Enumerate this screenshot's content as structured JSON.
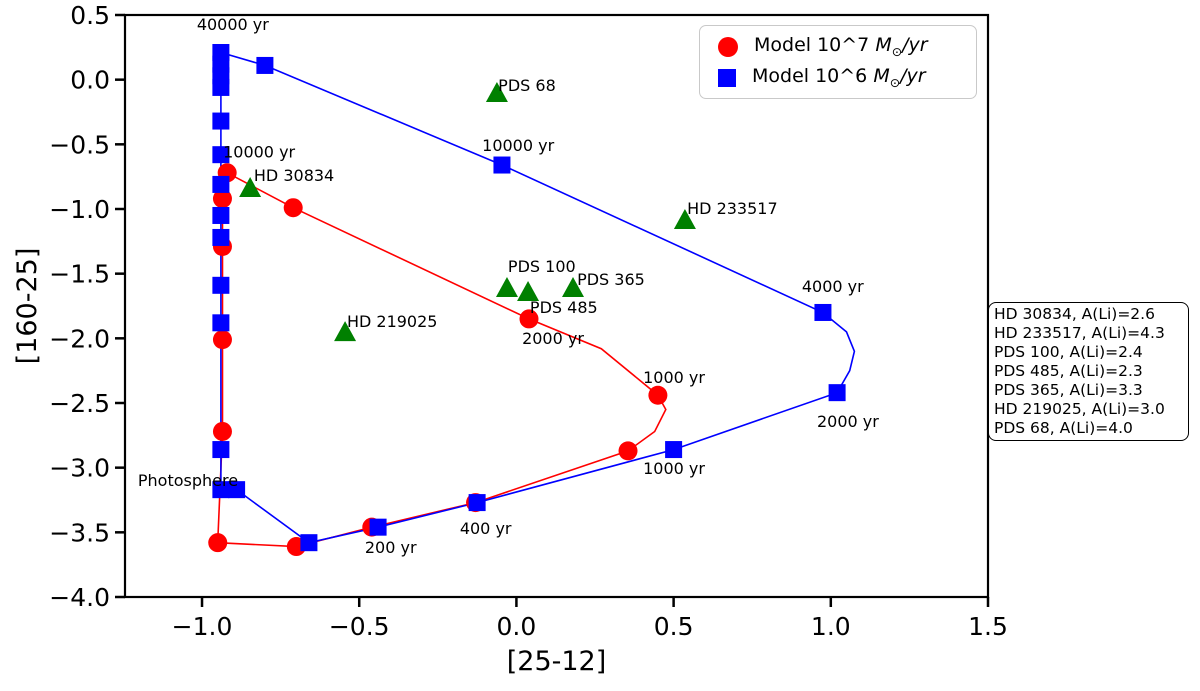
{
  "chart_data": {
    "type": "line+scatter",
    "xlabel": "[25-12]",
    "ylabel": "[160-25]",
    "xlim": [
      -1.245,
      1.5
    ],
    "ylim": [
      -4.0,
      0.5
    ],
    "xticks": [
      -1.0,
      -0.5,
      0.0,
      0.5,
      1.0,
      1.5
    ],
    "yticks": [
      0.5,
      0.0,
      -0.5,
      -1.0,
      -1.5,
      -2.0,
      -2.5,
      -3.0,
      -3.5,
      -4.0
    ],
    "grid": false,
    "series": [
      {
        "name": "Model 10^7 M⊙/yr",
        "color": "#ff0000",
        "marker": "circle",
        "markers": [
          [
            -0.92,
            -0.72
          ],
          [
            -0.935,
            -0.92
          ],
          [
            -0.935,
            -1.29
          ],
          [
            -0.935,
            -2.01
          ],
          [
            -0.935,
            -2.72
          ],
          [
            -0.95,
            -3.58
          ],
          [
            -0.7,
            -3.61
          ],
          [
            -0.46,
            -3.46
          ],
          [
            -0.13,
            -3.27
          ],
          [
            0.355,
            -2.87
          ],
          [
            0.45,
            -2.44
          ],
          [
            0.04,
            -1.85
          ],
          [
            -0.71,
            -0.99
          ]
        ],
        "path": [
          [
            -0.92,
            -0.72
          ],
          [
            -0.935,
            -0.85
          ],
          [
            -0.935,
            -0.92
          ],
          [
            -0.935,
            -1.29
          ],
          [
            -0.935,
            -2.01
          ],
          [
            -0.935,
            -2.72
          ],
          [
            -0.95,
            -3.58
          ],
          [
            -0.7,
            -3.61
          ],
          [
            -0.46,
            -3.46
          ],
          [
            -0.13,
            -3.27
          ],
          [
            0.355,
            -2.87
          ],
          [
            0.44,
            -2.72
          ],
          [
            0.475,
            -2.55
          ],
          [
            0.45,
            -2.44
          ],
          [
            0.27,
            -2.08
          ],
          [
            0.04,
            -1.85
          ],
          [
            -0.71,
            -0.99
          ],
          [
            -0.92,
            -0.72
          ]
        ]
      },
      {
        "name": "Model 10^6 M⊙/yr",
        "color": "#0000ff",
        "marker": "square",
        "markers": [
          [
            -0.94,
            0.21
          ],
          [
            -0.94,
            0.12
          ],
          [
            -0.94,
            0.03
          ],
          [
            -0.94,
            -0.06
          ],
          [
            -0.8,
            0.11
          ],
          [
            -0.94,
            -0.32
          ],
          [
            -0.94,
            -0.58
          ],
          [
            -0.94,
            -0.81
          ],
          [
            -0.94,
            -1.05
          ],
          [
            -0.94,
            -1.22
          ],
          [
            -0.94,
            -1.59
          ],
          [
            -0.94,
            -1.88
          ],
          [
            -0.94,
            -2.86
          ],
          [
            -0.94,
            -3.17
          ],
          [
            -0.89,
            -3.17
          ],
          [
            -0.66,
            -3.58
          ],
          [
            -0.44,
            -3.46
          ],
          [
            -0.125,
            -3.27
          ],
          [
            0.5,
            -2.86
          ],
          [
            1.02,
            -2.42
          ],
          [
            0.975,
            -1.8
          ],
          [
            -0.046,
            -0.66
          ]
        ],
        "path": [
          [
            -0.94,
            0.21
          ],
          [
            -0.94,
            0.12
          ],
          [
            -0.94,
            0.03
          ],
          [
            -0.94,
            -0.06
          ],
          [
            -0.94,
            -0.32
          ],
          [
            -0.94,
            -0.58
          ],
          [
            -0.94,
            -0.81
          ],
          [
            -0.94,
            -1.05
          ],
          [
            -0.94,
            -1.22
          ],
          [
            -0.94,
            -1.59
          ],
          [
            -0.94,
            -1.88
          ],
          [
            -0.94,
            -2.86
          ],
          [
            -0.94,
            -3.17
          ],
          [
            -0.89,
            -3.17
          ],
          [
            -0.66,
            -3.58
          ],
          [
            -0.44,
            -3.46
          ],
          [
            -0.125,
            -3.27
          ],
          [
            0.5,
            -2.86
          ],
          [
            1.02,
            -2.42
          ],
          [
            1.06,
            -2.25
          ],
          [
            1.075,
            -2.1
          ],
          [
            1.05,
            -1.95
          ],
          [
            0.975,
            -1.8
          ],
          [
            -0.046,
            -0.66
          ],
          [
            -0.8,
            0.11
          ],
          [
            -0.94,
            0.21
          ]
        ]
      }
    ],
    "stars": {
      "color": "#008000",
      "marker": "triangle",
      "items": [
        {
          "name": "PDS 68",
          "x": -0.062,
          "y": -0.103,
          "label_x": -0.058,
          "label_y": -0.088
        },
        {
          "name": "HD 30834",
          "x": -0.847,
          "y": -0.838,
          "label_x": -0.835,
          "label_y": -0.784
        },
        {
          "name": "HD 233517",
          "x": 0.536,
          "y": -1.085,
          "label_x": 0.543,
          "label_y": -1.039
        },
        {
          "name": "PDS 100",
          "x": -0.03,
          "y": -1.611,
          "label_x": -0.027,
          "label_y": -1.488
        },
        {
          "name": "PDS 485",
          "x": 0.037,
          "y": -1.642,
          "label_x": 0.043,
          "label_y": -1.804
        },
        {
          "name": "PDS 365",
          "x": 0.18,
          "y": -1.611,
          "label_x": 0.193,
          "label_y": -1.588
        },
        {
          "name": "HD 219025",
          "x": -0.545,
          "y": -1.952,
          "label_x": -0.539,
          "label_y": -1.913
        }
      ]
    },
    "annotations": [
      {
        "text": "40000 yr",
        "x": -0.902,
        "y": 0.384,
        "anchor": "middle"
      },
      {
        "text": "10000 yr",
        "x": -0.933,
        "y": -0.6,
        "anchor": "start"
      },
      {
        "text": "10000 yr",
        "x": -0.109,
        "y": -0.552,
        "anchor": "start"
      },
      {
        "text": "4000 yr",
        "x": 0.908,
        "y": -1.642,
        "anchor": "start"
      },
      {
        "text": "2000 yr",
        "x": 0.018,
        "y": -2.044,
        "anchor": "start"
      },
      {
        "text": "1000 yr",
        "x": 0.403,
        "y": -2.346,
        "anchor": "start"
      },
      {
        "text": "2000 yr",
        "x": 0.956,
        "y": -2.686,
        "anchor": "start"
      },
      {
        "text": "1000 yr",
        "x": 0.403,
        "y": -3.05,
        "anchor": "start"
      },
      {
        "text": "400 yr",
        "x": -0.18,
        "y": -3.514,
        "anchor": "start"
      },
      {
        "text": "200 yr",
        "x": -0.482,
        "y": -3.661,
        "anchor": "start"
      },
      {
        "text": "Photosphere",
        "x": -1.204,
        "y": -3.143,
        "anchor": "start"
      }
    ],
    "legend": {
      "position": "upper right",
      "entries": [
        {
          "prefix": "Model 10^7 ",
          "mass": "M",
          "sun": "⊙",
          "suffix": "/yr",
          "color": "#ff0000",
          "marker": "circle"
        },
        {
          "prefix": "Model 10^6 ",
          "mass": "M",
          "sun": "⊙",
          "suffix": "/yr",
          "color": "#0000ff",
          "marker": "square"
        }
      ]
    },
    "side_box": {
      "lines": [
        "HD 30834, A(Li)=2.6",
        "HD 233517, A(Li)=4.3",
        "PDS 100, A(Li)=2.4",
        "PDS 485, A(Li)=2.3",
        "PDS 365, A(Li)=3.3",
        "HD 219025, A(Li)=3.0",
        "PDS 68, A(Li)=4.0"
      ]
    }
  }
}
